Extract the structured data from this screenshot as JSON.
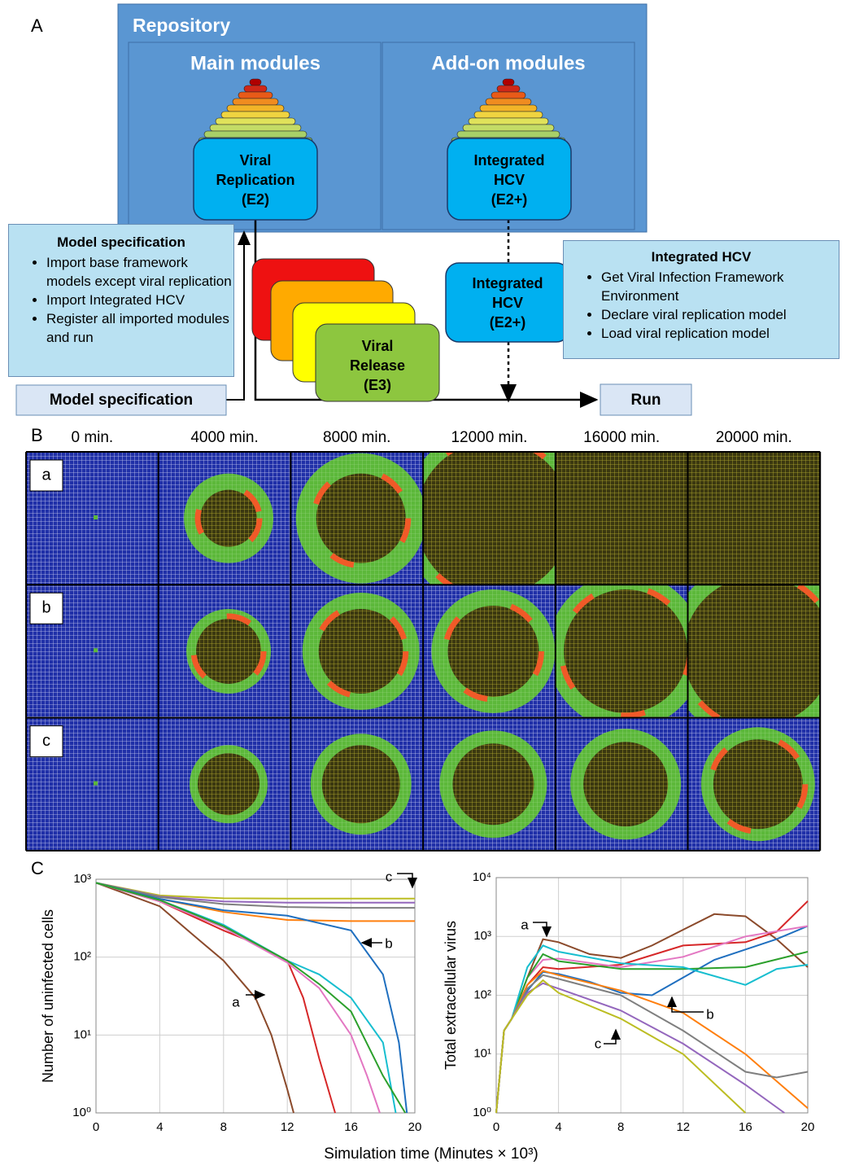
{
  "panel_labels": {
    "a": "A",
    "b": "B",
    "c": "C"
  },
  "diagram": {
    "repository": "Repository",
    "main_modules": "Main modules",
    "addon_modules": "Add-on modules",
    "viral_replication": [
      "Viral",
      "Replication",
      "(E2)"
    ],
    "integrated_hcv_top": [
      "Integrated",
      "HCV",
      "(E2+)"
    ],
    "integrated_hcv_mid": [
      "Integrated",
      "HCV",
      "(E2+)"
    ],
    "viral_release": [
      "Viral",
      "Release",
      "(E3)"
    ],
    "model_spec_box": {
      "title": "Model specification",
      "items": [
        "Import base framework models except viral replication",
        "Import Integrated HCV",
        "Register all imported modules and run"
      ]
    },
    "hcv_box": {
      "title": "Integrated HCV",
      "items": [
        "Get Viral Infection Framework Environment",
        "Declare viral replication model",
        "Load viral replication model"
      ]
    },
    "model_spec_button": "Model specification",
    "run": "Run"
  },
  "simulation": {
    "times": [
      "0 min.",
      "4000 min.",
      "8000 min.",
      "12000 min.",
      "16000 min.",
      "20000 min."
    ],
    "rows": [
      "a",
      "b",
      "c"
    ]
  },
  "figure_xlabel": "Simulation time (Minutes × 10³)",
  "chart_data": [
    {
      "type": "line",
      "ylabel": "Number of uninfected cells",
      "log_y": true,
      "grid": true,
      "xlim": [
        0,
        20
      ],
      "xticks": [
        0,
        4,
        8,
        12,
        16,
        20
      ],
      "ylim": [
        1,
        1000
      ],
      "yticks": [
        {
          "value": 1,
          "label": "10⁰"
        },
        {
          "value": 10,
          "label": "10¹"
        },
        {
          "value": 100,
          "label": "10²"
        },
        {
          "value": 1000,
          "label": "10³"
        }
      ],
      "annotations": [
        "a",
        "b",
        "c"
      ],
      "series": [
        {
          "color": "#bcbd22",
          "x": [
            0,
            4,
            8,
            12,
            16,
            20
          ],
          "values": [
            900,
            620,
            570,
            565,
            565,
            565
          ]
        },
        {
          "color": "#9467bd",
          "x": [
            0,
            4,
            8,
            12,
            16,
            20
          ],
          "values": [
            900,
            600,
            520,
            500,
            500,
            500
          ]
        },
        {
          "color": "#7f7f7f",
          "x": [
            0,
            4,
            8,
            12,
            16,
            20
          ],
          "values": [
            900,
            590,
            480,
            440,
            430,
            430
          ]
        },
        {
          "color": "#ff7f0e",
          "x": [
            0,
            4,
            8,
            12,
            16,
            20
          ],
          "values": [
            900,
            560,
            380,
            300,
            290,
            290
          ]
        },
        {
          "color": "#1f6fbf",
          "x": [
            0,
            4,
            8,
            12,
            16,
            18,
            19,
            19.5
          ],
          "values": [
            900,
            560,
            400,
            340,
            220,
            60,
            8,
            1
          ]
        },
        {
          "color": "#8b4a2b",
          "x": [
            0,
            4,
            6,
            8,
            10,
            11,
            12,
            12.4
          ],
          "values": [
            900,
            450,
            200,
            90,
            30,
            10,
            2,
            1
          ]
        },
        {
          "color": "#d62728",
          "x": [
            0,
            4,
            8,
            10,
            12,
            13,
            14,
            15
          ],
          "values": [
            900,
            520,
            220,
            150,
            90,
            30,
            5,
            1
          ]
        },
        {
          "color": "#e377c2",
          "x": [
            0,
            4,
            8,
            12,
            14,
            16,
            17,
            17.8
          ],
          "values": [
            900,
            520,
            240,
            85,
            40,
            10,
            3,
            1
          ]
        },
        {
          "color": "#17becf",
          "x": [
            0,
            4,
            8,
            12,
            14,
            16,
            18,
            18.8
          ],
          "values": [
            900,
            540,
            260,
            90,
            60,
            30,
            8,
            1
          ]
        },
        {
          "color": "#2ca02c",
          "x": [
            0,
            4,
            8,
            12,
            14,
            16,
            18,
            19.4
          ],
          "values": [
            900,
            540,
            250,
            90,
            45,
            20,
            3,
            1
          ]
        }
      ]
    },
    {
      "type": "line",
      "ylabel": "Total extracellular virus",
      "log_y": true,
      "grid": true,
      "xlim": [
        0,
        20
      ],
      "xticks": [
        0,
        4,
        8,
        12,
        16,
        20
      ],
      "ylim": [
        1,
        10000
      ],
      "yticks": [
        {
          "value": 1,
          "label": "10⁰"
        },
        {
          "value": 10,
          "label": "10¹"
        },
        {
          "value": 100,
          "label": "10²"
        },
        {
          "value": 1000,
          "label": "10³"
        },
        {
          "value": 10000,
          "label": "10⁴"
        }
      ],
      "annotations": [
        "a",
        "b",
        "c"
      ],
      "series": [
        {
          "color": "#8b4a2b",
          "x": [
            0,
            0.5,
            1,
            2,
            3,
            4,
            6,
            8,
            10,
            12,
            14,
            16,
            18,
            20
          ],
          "values": [
            1,
            25,
            40,
            200,
            900,
            800,
            500,
            430,
            700,
            1300,
            2400,
            2200,
            900,
            300
          ]
        },
        {
          "color": "#d62728",
          "x": [
            0,
            0.5,
            1,
            2,
            3,
            4,
            8,
            12,
            16,
            18,
            20
          ],
          "values": [
            1,
            25,
            40,
            150,
            300,
            280,
            330,
            700,
            800,
            1200,
            4000
          ]
        },
        {
          "color": "#1f6fbf",
          "x": [
            0,
            0.5,
            1,
            2,
            3,
            4,
            6,
            8,
            10,
            12,
            14,
            16,
            18,
            20
          ],
          "values": [
            1,
            25,
            40,
            120,
            250,
            230,
            170,
            110,
            100,
            200,
            400,
            600,
            900,
            1500
          ]
        },
        {
          "color": "#e377c2",
          "x": [
            0,
            0.5,
            1,
            2,
            3,
            4,
            8,
            12,
            16,
            20
          ],
          "values": [
            1,
            25,
            40,
            200,
            400,
            420,
            300,
            450,
            1000,
            1500
          ]
        },
        {
          "color": "#2ca02c",
          "x": [
            0,
            0.5,
            1,
            2,
            3,
            4,
            8,
            12,
            16,
            20
          ],
          "values": [
            1,
            25,
            40,
            200,
            500,
            380,
            280,
            280,
            300,
            550
          ]
        },
        {
          "color": "#17becf",
          "x": [
            0,
            0.5,
            1,
            2,
            3,
            4,
            8,
            12,
            16,
            18,
            20
          ],
          "values": [
            1,
            25,
            40,
            300,
            700,
            550,
            350,
            300,
            150,
            280,
            330
          ]
        },
        {
          "color": "#ff7f0e",
          "x": [
            0,
            0.5,
            1,
            2,
            3,
            4,
            8,
            12,
            16,
            20
          ],
          "values": [
            1,
            25,
            40,
            150,
            260,
            220,
            120,
            50,
            10,
            1.2
          ]
        },
        {
          "color": "#7f7f7f",
          "x": [
            0,
            0.5,
            1,
            2,
            3,
            4,
            8,
            12,
            16,
            18,
            20
          ],
          "values": [
            1,
            25,
            40,
            130,
            220,
            190,
            100,
            25,
            5,
            4,
            5
          ]
        },
        {
          "color": "#9467bd",
          "x": [
            0,
            0.5,
            1,
            2,
            3,
            4,
            8,
            12,
            16,
            18.5
          ],
          "values": [
            1,
            25,
            40,
            110,
            160,
            130,
            55,
            15,
            3,
            1
          ]
        },
        {
          "color": "#bcbd22",
          "x": [
            0,
            0.5,
            1,
            2,
            3,
            4,
            8,
            12,
            16
          ],
          "values": [
            1,
            25,
            40,
            100,
            180,
            110,
            40,
            10,
            1
          ]
        }
      ]
    }
  ]
}
